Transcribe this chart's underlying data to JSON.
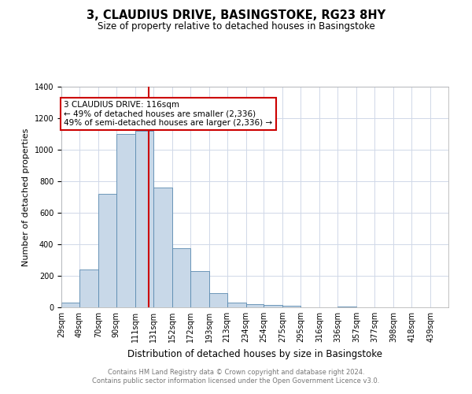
{
  "title": "3, CLAUDIUS DRIVE, BASINGSTOKE, RG23 8HY",
  "subtitle": "Size of property relative to detached houses in Basingstoke",
  "xlabel": "Distribution of detached houses by size in Basingstoke",
  "ylabel": "Number of detached properties",
  "bin_labels": [
    "29sqm",
    "49sqm",
    "70sqm",
    "90sqm",
    "111sqm",
    "131sqm",
    "152sqm",
    "172sqm",
    "193sqm",
    "213sqm",
    "234sqm",
    "254sqm",
    "275sqm",
    "295sqm",
    "316sqm",
    "336sqm",
    "357sqm",
    "377sqm",
    "398sqm",
    "418sqm",
    "439sqm"
  ],
  "bar_heights": [
    30,
    240,
    720,
    1100,
    1120,
    760,
    375,
    230,
    90,
    30,
    20,
    15,
    10,
    0,
    0,
    5,
    0,
    0,
    0,
    0,
    0
  ],
  "bar_color": "#c8d8e8",
  "bar_edgecolor": "#5a8ab0",
  "vline_color": "#cc0000",
  "ylim": [
    0,
    1400
  ],
  "yticks": [
    0,
    200,
    400,
    600,
    800,
    1000,
    1200,
    1400
  ],
  "annotation_title": "3 CLAUDIUS DRIVE: 116sqm",
  "annotation_line1": "← 49% of detached houses are smaller (2,336)",
  "annotation_line2": "49% of semi-detached houses are larger (2,336) →",
  "annotation_box_edgecolor": "#cc0000",
  "grid_color": "#d0d8e8",
  "footnote1": "Contains HM Land Registry data © Crown copyright and database right 2024.",
  "footnote2": "Contains public sector information licensed under the Open Government Licence v3.0.",
  "bin_edges": [
    19,
    39,
    60,
    80,
    101,
    121,
    142,
    162,
    183,
    203,
    224,
    244,
    265,
    285,
    306,
    326,
    347,
    367,
    388,
    408,
    429,
    449
  ],
  "property_size": 116,
  "title_fontsize": 10.5,
  "subtitle_fontsize": 8.5,
  "ylabel_fontsize": 8,
  "xlabel_fontsize": 8.5,
  "tick_fontsize": 7,
  "annot_fontsize": 7.5,
  "footnote_fontsize": 6,
  "footnote_color": "#777777"
}
